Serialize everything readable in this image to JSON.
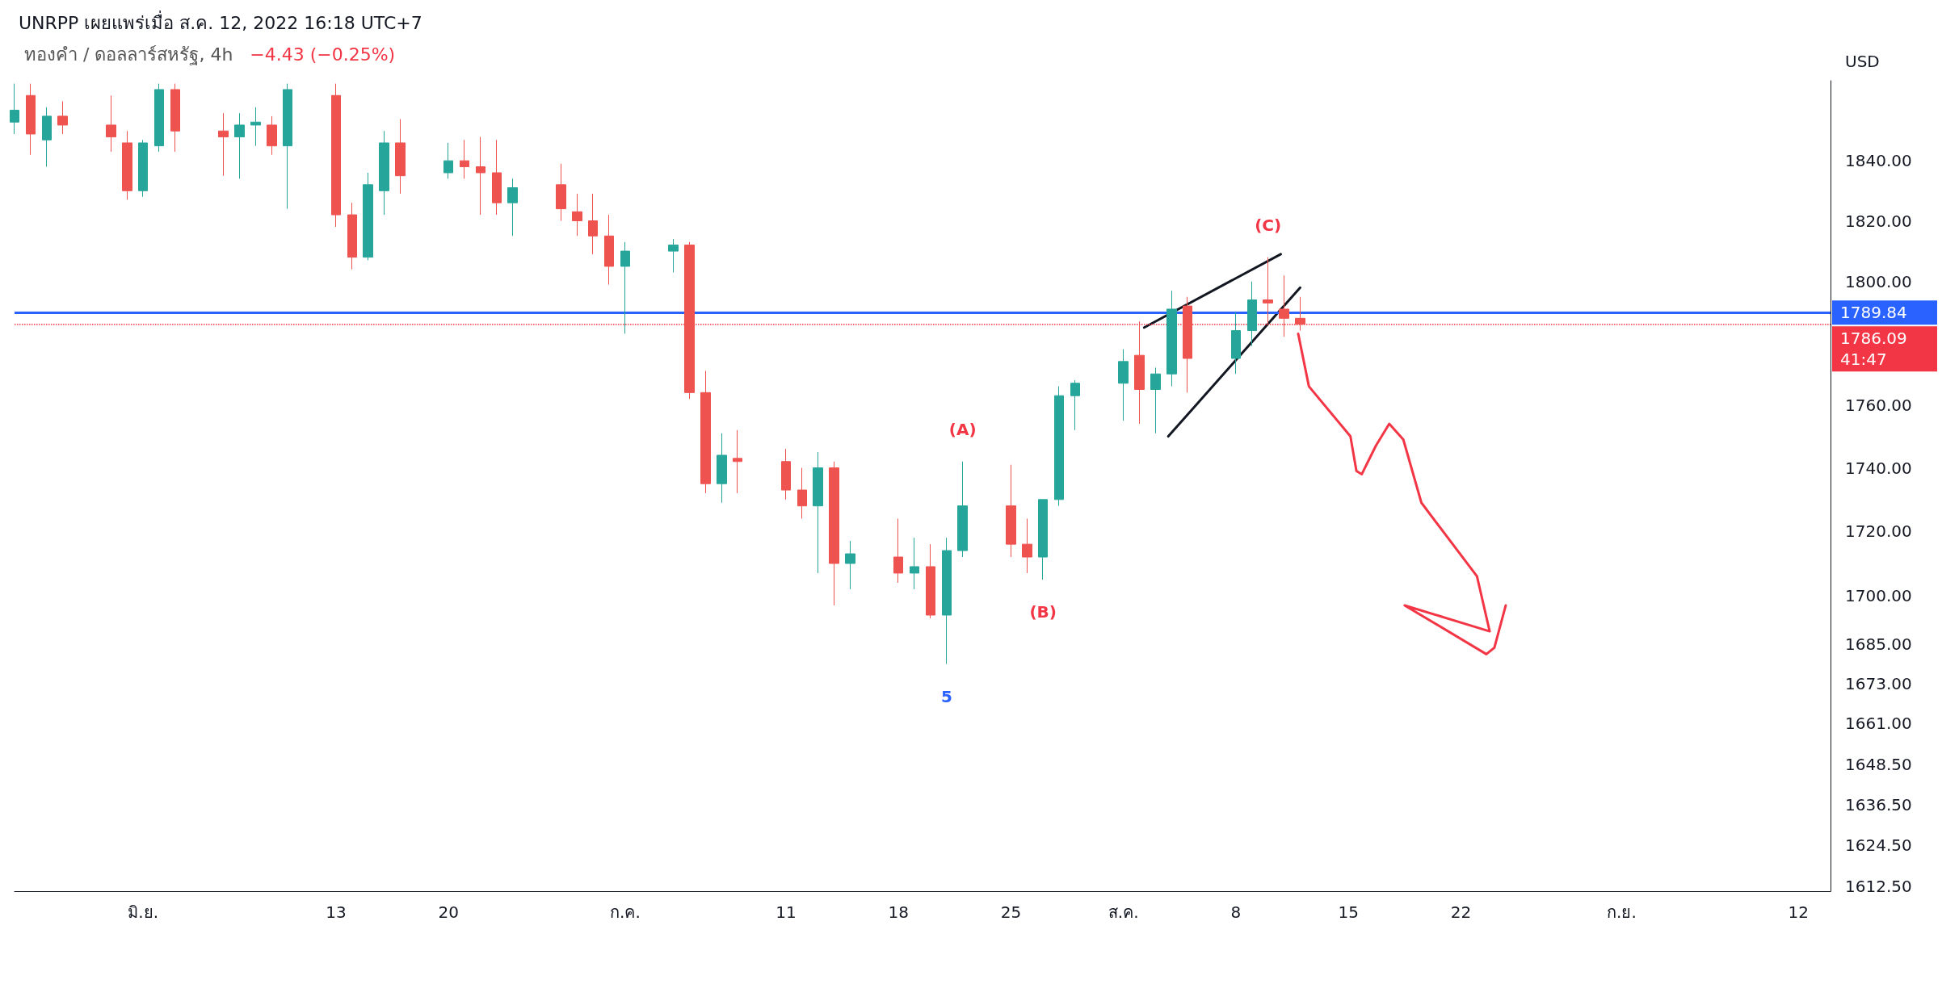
{
  "chart_data": {
    "type": "candlestick",
    "title": "UNRPP เผยแพร่เมื่อ ส.ค. 12, 2022 16:18 UTC+7",
    "subtitle": "ทองคำ / ดอลลาร์สหรัฐ, 4h",
    "ylabel": "USD",
    "log": true,
    "grid": false,
    "marker": "none",
    "xlim": [
      "2022-05-24",
      "2022-09-14"
    ],
    "xticks": [
      {
        "value": "2022-06-01",
        "label": "มิ.ย."
      },
      {
        "value": "2022-06-13",
        "label": "13"
      },
      {
        "value": "2022-06-20",
        "label": "20"
      },
      {
        "value": "2022-07-01",
        "label": "ก.ค."
      },
      {
        "value": "2022-07-11",
        "label": "11"
      },
      {
        "value": "2022-07-18",
        "label": "18"
      },
      {
        "value": "2022-07-25",
        "label": "25"
      },
      {
        "value": "2022-08-01",
        "label": "ส.ค."
      },
      {
        "value": "2022-08-08",
        "label": "8"
      },
      {
        "value": "2022-08-15",
        "label": "15"
      },
      {
        "value": "2022-08-22",
        "label": "22"
      },
      {
        "value": "2022-09-01",
        "label": "ก.ย."
      },
      {
        "value": "2022-09-12",
        "label": "12"
      }
    ],
    "ylim": [
      1611,
      1867
    ],
    "yticks": [
      {
        "value": 1612.5,
        "label": "1612.50"
      },
      {
        "value": 1624.5,
        "label": "1624.50"
      },
      {
        "value": 1636.5,
        "label": "1636.50"
      },
      {
        "value": 1648.5,
        "label": "1648.50"
      },
      {
        "value": 1661,
        "label": "1661.00"
      },
      {
        "value": 1673,
        "label": "1673.00"
      },
      {
        "value": 1685,
        "label": "1685.00"
      },
      {
        "value": 1700,
        "label": "1700.00"
      },
      {
        "value": 1720,
        "label": "1720.00"
      },
      {
        "value": 1740,
        "label": "1740.00"
      },
      {
        "value": 1760,
        "label": "1760.00"
      },
      {
        "value": 1800,
        "label": "1800.00"
      },
      {
        "value": 1820,
        "label": "1820.00"
      },
      {
        "value": 1840,
        "label": "1840.00"
      }
    ],
    "ref_lines": [
      {
        "axis": "y",
        "value": 1789.84,
        "label": "1789.84",
        "color": "#2962ff",
        "line_style": "solid"
      },
      {
        "axis": "y",
        "value": 1786.09,
        "label": "1786.09",
        "color": "#f23645",
        "line_style": "dotted"
      }
    ],
    "annotations": [
      "−4.43 (−0.25%)",
      "41:47",
      {
        "text": "(C)",
        "x": "2022-08-10",
        "y": 1808
      },
      {
        "text": "(A)",
        "x": "2022-07-22",
        "y": 1742
      },
      {
        "text": "(B)",
        "x": "2022-07-27",
        "y": 1705
      },
      {
        "text": "5",
        "x": "2022-07-21",
        "y": 1679
      }
    ],
    "series": [
      {
        "type": "candlestick",
        "x": [
          "2022-05-24",
          "2022-05-25",
          "2022-05-26",
          "2022-05-27",
          "2022-05-30",
          "2022-05-31",
          "2022-06-01",
          "2022-06-02",
          "2022-06-03",
          "2022-06-06",
          "2022-06-07",
          "2022-06-08",
          "2022-06-09",
          "2022-06-10",
          "2022-06-13",
          "2022-06-14",
          "2022-06-15",
          "2022-06-16",
          "2022-06-17",
          "2022-06-20",
          "2022-06-21",
          "2022-06-22",
          "2022-06-23",
          "2022-06-24",
          "2022-06-27",
          "2022-06-28",
          "2022-06-29",
          "2022-06-30",
          "2022-07-01",
          "2022-07-04",
          "2022-07-05",
          "2022-07-06",
          "2022-07-07",
          "2022-07-08",
          "2022-07-11",
          "2022-07-12",
          "2022-07-13",
          "2022-07-14",
          "2022-07-15",
          "2022-07-18",
          "2022-07-19",
          "2022-07-20",
          "2022-07-21",
          "2022-07-22",
          "2022-07-25",
          "2022-07-26",
          "2022-07-27",
          "2022-07-28",
          "2022-07-29",
          "2022-08-01",
          "2022-08-02",
          "2022-08-03",
          "2022-08-04",
          "2022-08-05",
          "2022-08-08",
          "2022-08-09",
          "2022-08-10",
          "2022-08-11",
          "2022-08-12"
        ],
        "ohlc": [
          [
            1853,
            1866,
            1849,
            1857
          ],
          [
            1862,
            1866,
            1842,
            1849
          ],
          [
            1847,
            1858,
            1838,
            1855
          ],
          [
            1855,
            1860,
            1849,
            1852
          ],
          [
            1852,
            1862,
            1843,
            1848
          ],
          [
            1846,
            1850,
            1827,
            1830
          ],
          [
            1830,
            1847,
            1828,
            1846
          ],
          [
            1845,
            1866,
            1843,
            1864
          ],
          [
            1864,
            1866,
            1843,
            1850
          ],
          [
            1850,
            1856,
            1835,
            1848
          ],
          [
            1848,
            1856,
            1834,
            1852
          ],
          [
            1852,
            1858,
            1845,
            1853
          ],
          [
            1852,
            1855,
            1842,
            1845
          ],
          [
            1845,
            1866,
            1824,
            1864
          ],
          [
            1862,
            1866,
            1818,
            1822
          ],
          [
            1822,
            1826,
            1804,
            1808
          ],
          [
            1808,
            1836,
            1807,
            1832
          ],
          [
            1830,
            1850,
            1822,
            1846
          ],
          [
            1846,
            1854,
            1829,
            1835
          ],
          [
            1836,
            1846,
            1834,
            1840
          ],
          [
            1840,
            1847,
            1834,
            1838
          ],
          [
            1838,
            1848,
            1822,
            1836
          ],
          [
            1836,
            1847,
            1822,
            1826
          ],
          [
            1826,
            1834,
            1815,
            1831
          ],
          [
            1832,
            1839,
            1820,
            1824
          ],
          [
            1823,
            1829,
            1815,
            1820
          ],
          [
            1820,
            1829,
            1809,
            1815
          ],
          [
            1815,
            1822,
            1799,
            1805
          ],
          [
            1805,
            1813,
            1783,
            1810
          ],
          [
            1810,
            1814,
            1803,
            1812
          ],
          [
            1812,
            1813,
            1762,
            1764
          ],
          [
            1764,
            1771,
            1732,
            1735
          ],
          [
            1735,
            1751,
            1729,
            1744
          ],
          [
            1743,
            1752,
            1732,
            1742
          ],
          [
            1742,
            1746,
            1730,
            1733
          ],
          [
            1733,
            1740,
            1724,
            1728
          ],
          [
            1728,
            1745,
            1707,
            1740
          ],
          [
            1740,
            1742,
            1697,
            1710
          ],
          [
            1710,
            1717,
            1702,
            1713
          ],
          [
            1712,
            1724,
            1704,
            1707
          ],
          [
            1707,
            1718,
            1702,
            1709
          ],
          [
            1709,
            1716,
            1693,
            1694
          ],
          [
            1694,
            1718,
            1679,
            1714
          ],
          [
            1714,
            1742,
            1712,
            1728
          ],
          [
            1728,
            1741,
            1712,
            1716
          ],
          [
            1716,
            1724,
            1707,
            1712
          ],
          [
            1712,
            1730,
            1705,
            1730
          ],
          [
            1730,
            1766,
            1728,
            1763
          ],
          [
            1763,
            1768,
            1752,
            1767
          ],
          [
            1767,
            1778,
            1755,
            1774
          ],
          [
            1776,
            1787,
            1754,
            1765
          ],
          [
            1765,
            1772,
            1751,
            1770
          ],
          [
            1770,
            1797,
            1766,
            1791
          ],
          [
            1792,
            1795,
            1764,
            1775
          ],
          [
            1775,
            1790,
            1770,
            1784
          ],
          [
            1784,
            1800,
            1779,
            1794
          ],
          [
            1794,
            1808,
            1786,
            1793
          ],
          [
            1791,
            1802,
            1782,
            1788
          ],
          [
            1788,
            1795,
            1784,
            1786.09
          ]
        ],
        "colors": [
          "#26a69a",
          "#ef5350",
          "#26a69a",
          "#ef5350",
          "#ef5350",
          "#ef5350",
          "#26a69a",
          "#26a69a",
          "#ef5350",
          "#ef5350",
          "#26a69a",
          "#26a69a",
          "#ef5350",
          "#26a69a",
          "#ef5350",
          "#ef5350",
          "#26a69a",
          "#26a69a",
          "#ef5350",
          "#26a69a",
          "#ef5350",
          "#ef5350",
          "#ef5350",
          "#26a69a",
          "#ef5350",
          "#ef5350",
          "#ef5350",
          "#ef5350",
          "#26a69a",
          "#26a69a",
          "#ef5350",
          "#ef5350",
          "#26a69a",
          "#ef5350",
          "#ef5350",
          "#ef5350",
          "#26a69a",
          "#ef5350",
          "#26a69a",
          "#ef5350",
          "#26a69a",
          "#ef5350",
          "#26a69a",
          "#26a69a",
          "#ef5350",
          "#ef5350",
          "#26a69a",
          "#26a69a",
          "#26a69a",
          "#26a69a",
          "#ef5350",
          "#26a69a",
          "#26a69a",
          "#ef5350",
          "#26a69a",
          "#26a69a",
          "#ef5350",
          "#ef5350",
          "#ef5350"
        ]
      },
      {
        "type": "line",
        "color": "#131722",
        "x": [
          "2022-08-02T07:00",
          "2022-08-10T19:00"
        ],
        "values": [
          1785,
          1809
        ]
      },
      {
        "type": "line",
        "color": "#131722",
        "x": [
          "2022-08-03T19:00",
          "2022-08-12T00:00"
        ],
        "values": [
          1750,
          1798
        ]
      },
      {
        "type": "line",
        "color": "#f23645",
        "x": [
          "2022-08-11T21:00",
          "2022-08-12T13:00",
          "2022-08-15T03:00",
          "2022-08-15T12:00",
          "2022-08-15T20:00",
          "2022-08-16T17:00",
          "2022-08-17T13:00",
          "2022-08-18T10:00",
          "2022-08-19T13:00",
          "2022-08-23T00:00",
          "2022-08-23T19:00",
          "2022-08-18T12:00",
          "2022-08-23T14:00",
          "2022-08-24T02:00",
          "2022-08-24T19:00"
        ],
        "values": [
          1783,
          1766,
          1750,
          1739,
          1738,
          1747,
          1754,
          1749,
          1729,
          1706,
          1689,
          1697,
          1682,
          1684,
          1697
        ]
      }
    ]
  }
}
